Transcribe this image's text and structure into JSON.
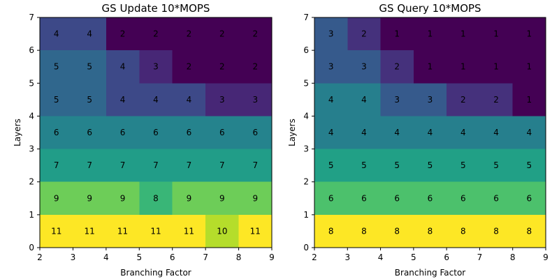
{
  "chart_data": [
    {
      "type": "heatmap",
      "title": "GS Update 10*MOPS",
      "xlabel": "Branching Factor",
      "ylabel": "Layers",
      "xlim": [
        2,
        9
      ],
      "ylim": [
        0,
        7
      ],
      "xticks": [
        "2",
        "3",
        "4",
        "5",
        "6",
        "7",
        "8",
        "9"
      ],
      "yticks": [
        "0",
        "1",
        "2",
        "3",
        "4",
        "5",
        "6",
        "7"
      ],
      "colormap": "viridis",
      "rows_bottom_to_top": [
        [
          11,
          11,
          11,
          11,
          11,
          10,
          11
        ],
        [
          9,
          9,
          9,
          8,
          9,
          9,
          9
        ],
        [
          7,
          7,
          7,
          7,
          7,
          7,
          7
        ],
        [
          6,
          6,
          6,
          6,
          6,
          6,
          6
        ],
        [
          5,
          5,
          4,
          4,
          4,
          3,
          3
        ],
        [
          5,
          5,
          4,
          3,
          2,
          2,
          2
        ],
        [
          4,
          4,
          2,
          2,
          2,
          2,
          2
        ]
      ]
    },
    {
      "type": "heatmap",
      "title": "GS Query 10*MOPS",
      "xlabel": "Branching Factor",
      "ylabel": "Layers",
      "xlim": [
        2,
        9
      ],
      "ylim": [
        0,
        7
      ],
      "xticks": [
        "2",
        "3",
        "4",
        "5",
        "6",
        "7",
        "8",
        "9"
      ],
      "yticks": [
        "0",
        "1",
        "2",
        "3",
        "4",
        "5",
        "6",
        "7"
      ],
      "colormap": "viridis",
      "rows_bottom_to_top": [
        [
          8,
          8,
          8,
          8,
          8,
          8,
          8
        ],
        [
          6,
          6,
          6,
          6,
          6,
          6,
          6
        ],
        [
          5,
          5,
          5,
          5,
          5,
          5,
          5
        ],
        [
          4,
          4,
          4,
          4,
          4,
          4,
          4
        ],
        [
          4,
          4,
          3,
          3,
          2,
          2,
          1
        ],
        [
          3,
          3,
          2,
          1,
          1,
          1,
          1
        ],
        [
          3,
          2,
          1,
          1,
          1,
          1,
          1
        ]
      ]
    }
  ]
}
